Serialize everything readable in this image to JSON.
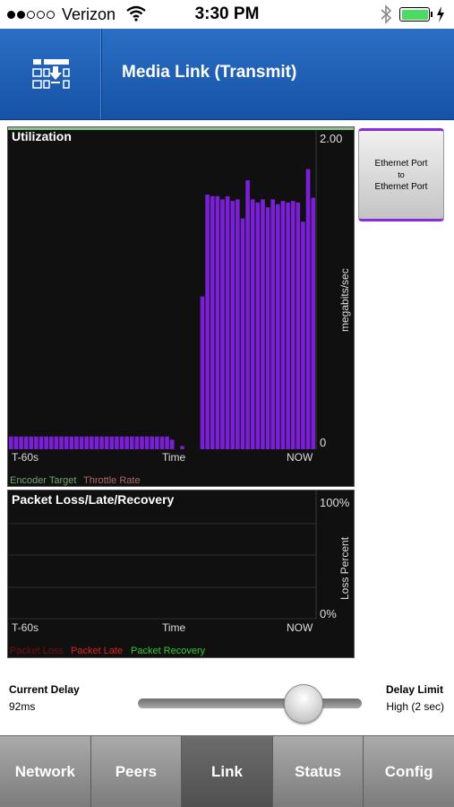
{
  "status_bar": {
    "carrier": "Verizon",
    "signal_bars_filled": 2,
    "signal_bars_total": 5,
    "time": "3:30 PM",
    "battery_level": 1.0
  },
  "header": {
    "title": "Media Link (Transmit)",
    "menu_icon": "network-menu-icon"
  },
  "side_button": {
    "line1": "Ethernet Port",
    "line2": "to",
    "line3": "Ethernet Port",
    "accent": "#8a2be2"
  },
  "utilization": {
    "title": "Utilization",
    "x_start": "T-60s",
    "x_mid": "Time",
    "x_end": "NOW",
    "y_max_label": "2.00",
    "y_min_label": "0",
    "y_axis_title": "megabits/sec",
    "legend": [
      {
        "label": "Encoder Target",
        "color": "#6fa36f"
      },
      {
        "label": "Throttle Rate",
        "color": "#b06666"
      }
    ],
    "bar_color": "#7a1fd6",
    "target_line_color": "#8fbf8f"
  },
  "packet": {
    "title": "Packet Loss/Late/Recovery",
    "x_start": "T-60s",
    "x_mid": "Time",
    "x_end": "NOW",
    "y_max_label": "100%",
    "y_min_label": "0%",
    "y_axis_title": "Loss Percent",
    "legend": [
      {
        "label": "Packet Loss",
        "color": "#7a0d0d"
      },
      {
        "label": "Packet Late",
        "color": "#e02020"
      },
      {
        "label": "Packet Recovery",
        "color": "#33cc33"
      }
    ]
  },
  "delay": {
    "current_label": "Current Delay",
    "current_value": "92ms",
    "limit_label": "Delay Limit",
    "limit_value": "High (2 sec)",
    "slider_fraction": 0.74
  },
  "tabs": [
    {
      "label": "Network",
      "active": false
    },
    {
      "label": "Peers",
      "active": false
    },
    {
      "label": "Link",
      "active": true
    },
    {
      "label": "Status",
      "active": false
    },
    {
      "label": "Config",
      "active": false
    }
  ],
  "chart_data": [
    {
      "type": "bar",
      "title": "Utilization",
      "xlabel": "Time",
      "ylabel": "megabits/sec",
      "ylim": [
        0,
        2.0
      ],
      "x_ticks": [
        "T-60s",
        "Time",
        "NOW"
      ],
      "legend": [
        "Encoder Target",
        "Throttle Rate"
      ],
      "values": [
        0.08,
        0.08,
        0.08,
        0.08,
        0.08,
        0.08,
        0.08,
        0.08,
        0.08,
        0.08,
        0.08,
        0.08,
        0.08,
        0.08,
        0.08,
        0.08,
        0.08,
        0.08,
        0.08,
        0.08,
        0.08,
        0.08,
        0.08,
        0.08,
        0.08,
        0.08,
        0.08,
        0.08,
        0.08,
        0.08,
        0.08,
        0.08,
        0.06,
        0.0,
        0.02,
        0.0,
        0.0,
        0.0,
        0.96,
        1.6,
        1.59,
        1.59,
        1.57,
        1.59,
        1.56,
        1.57,
        1.45,
        1.69,
        1.57,
        1.55,
        1.57,
        1.52,
        1.57,
        1.54,
        1.56,
        1.55,
        1.56,
        1.55,
        1.43,
        1.76,
        1.58
      ]
    },
    {
      "type": "line",
      "title": "Packet Loss/Late/Recovery",
      "xlabel": "Time",
      "ylabel": "Loss Percent",
      "ylim": [
        0,
        100
      ],
      "x_ticks": [
        "T-60s",
        "Time",
        "NOW"
      ],
      "series": [
        {
          "name": "Packet Loss",
          "values": []
        },
        {
          "name": "Packet Late",
          "values": []
        },
        {
          "name": "Packet Recovery",
          "values": []
        }
      ]
    }
  ]
}
